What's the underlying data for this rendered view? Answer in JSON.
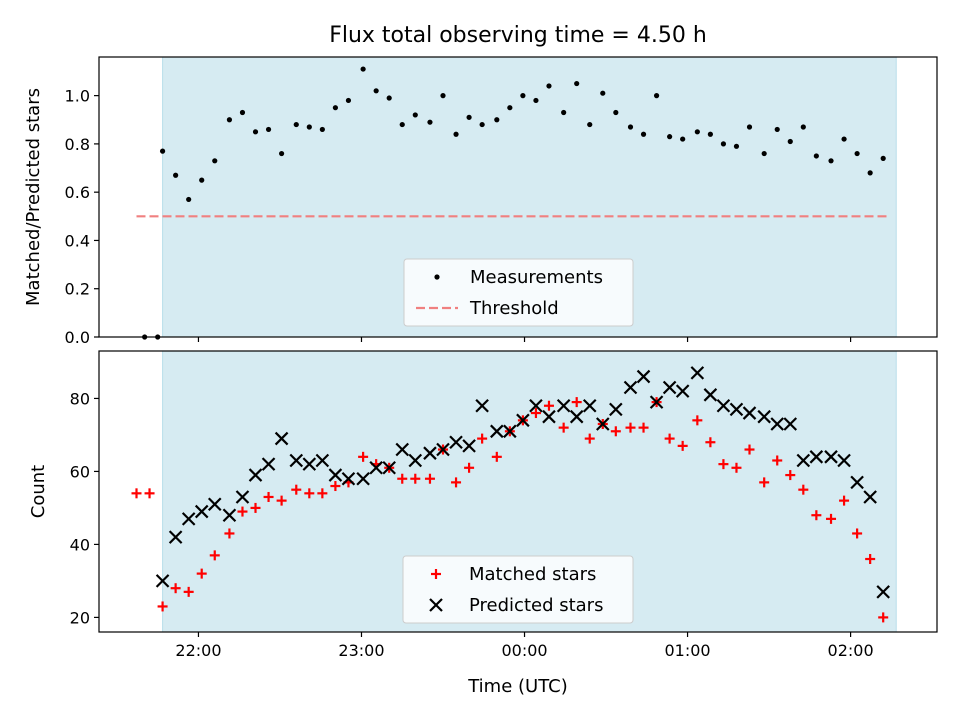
{
  "chart_data": {
    "title": "Flux total observing time = 4.50 h",
    "xlabel": "Time (UTC)",
    "x_unit": "hours (UTC, after 24 -> next day)",
    "xlim": [
      21.39,
      26.53
    ],
    "x_ticks": [
      {
        "value": 22,
        "label": "22:00"
      },
      {
        "value": 23,
        "label": "23:00"
      },
      {
        "value": 24,
        "label": "00:00"
      },
      {
        "value": 25,
        "label": "01:00"
      },
      {
        "value": 26,
        "label": "02:00"
      }
    ],
    "observing_window": {
      "start": 21.78,
      "end": 26.28,
      "color": "#add8e6"
    },
    "top": {
      "type": "scatter",
      "ylabel": "Matched/Predicted stars",
      "ylim": [
        0.0,
        1.16
      ],
      "yticks": [
        0.0,
        0.2,
        0.4,
        0.6,
        0.8,
        1.0
      ],
      "ytick_labels": [
        "0.0",
        "0.2",
        "0.4",
        "0.6",
        "0.8",
        "1.0"
      ],
      "threshold": {
        "value": 0.5,
        "x": [
          21.62,
          26.23
        ],
        "color": "#f08080",
        "name": "Threshold"
      },
      "legend": {
        "placement": "lower-center",
        "entries": [
          "Measurements",
          "Threshold"
        ]
      },
      "series": [
        {
          "name": "Measurements",
          "color": "#000000",
          "points": [
            [
              21.67,
              0.0
            ],
            [
              21.75,
              0.0
            ],
            [
              21.78,
              0.77
            ],
            [
              21.86,
              0.67
            ],
            [
              21.94,
              0.57
            ],
            [
              22.02,
              0.65
            ],
            [
              22.1,
              0.73
            ],
            [
              22.19,
              0.9
            ],
            [
              22.27,
              0.93
            ],
            [
              22.35,
              0.85
            ],
            [
              22.43,
              0.86
            ],
            [
              22.51,
              0.76
            ],
            [
              22.6,
              0.88
            ],
            [
              22.68,
              0.87
            ],
            [
              22.76,
              0.86
            ],
            [
              22.84,
              0.95
            ],
            [
              22.92,
              0.98
            ],
            [
              23.01,
              1.11
            ],
            [
              23.09,
              1.02
            ],
            [
              23.17,
              0.99
            ],
            [
              23.25,
              0.88
            ],
            [
              23.33,
              0.92
            ],
            [
              23.42,
              0.89
            ],
            [
              23.5,
              1.0
            ],
            [
              23.58,
              0.84
            ],
            [
              23.66,
              0.91
            ],
            [
              23.74,
              0.88
            ],
            [
              23.83,
              0.9
            ],
            [
              23.91,
              0.95
            ],
            [
              23.99,
              1.0
            ],
            [
              24.07,
              0.98
            ],
            [
              24.15,
              1.04
            ],
            [
              24.24,
              0.93
            ],
            [
              24.32,
              1.05
            ],
            [
              24.4,
              0.88
            ],
            [
              24.48,
              1.01
            ],
            [
              24.56,
              0.93
            ],
            [
              24.65,
              0.87
            ],
            [
              24.73,
              0.84
            ],
            [
              24.81,
              1.0
            ],
            [
              24.89,
              0.83
            ],
            [
              24.97,
              0.82
            ],
            [
              25.06,
              0.85
            ],
            [
              25.14,
              0.84
            ],
            [
              25.22,
              0.8
            ],
            [
              25.3,
              0.79
            ],
            [
              25.38,
              0.87
            ],
            [
              25.47,
              0.76
            ],
            [
              25.55,
              0.86
            ],
            [
              25.63,
              0.81
            ],
            [
              25.71,
              0.87
            ],
            [
              25.79,
              0.75
            ],
            [
              25.88,
              0.73
            ],
            [
              25.96,
              0.82
            ],
            [
              26.04,
              0.76
            ],
            [
              26.12,
              0.68
            ],
            [
              26.2,
              0.74
            ]
          ]
        }
      ]
    },
    "bottom": {
      "type": "scatter",
      "ylabel": "Count",
      "ylim": [
        16,
        93
      ],
      "yticks": [
        20,
        40,
        60,
        80
      ],
      "ytick_labels": [
        "20",
        "40",
        "60",
        "80"
      ],
      "legend": {
        "placement": "lower-center",
        "entries": [
          "Matched stars",
          "Predicted stars"
        ]
      },
      "series": [
        {
          "name": "Matched stars",
          "marker": "plus",
          "color": "#ff0000",
          "points": [
            [
              21.62,
              54
            ],
            [
              21.7,
              54
            ],
            [
              21.78,
              23
            ],
            [
              21.86,
              28
            ],
            [
              21.94,
              27
            ],
            [
              22.02,
              32
            ],
            [
              22.1,
              37
            ],
            [
              22.19,
              43
            ],
            [
              22.27,
              49
            ],
            [
              22.35,
              50
            ],
            [
              22.43,
              53
            ],
            [
              22.51,
              52
            ],
            [
              22.6,
              55
            ],
            [
              22.68,
              54
            ],
            [
              22.76,
              54
            ],
            [
              22.84,
              56
            ],
            [
              22.92,
              57
            ],
            [
              23.01,
              64
            ],
            [
              23.09,
              62
            ],
            [
              23.17,
              61
            ],
            [
              23.25,
              58
            ],
            [
              23.33,
              58
            ],
            [
              23.42,
              58
            ],
            [
              23.5,
              66
            ],
            [
              23.58,
              57
            ],
            [
              23.66,
              61
            ],
            [
              23.74,
              69
            ],
            [
              23.83,
              64
            ],
            [
              23.91,
              71
            ],
            [
              23.99,
              74
            ],
            [
              24.07,
              76
            ],
            [
              24.15,
              78
            ],
            [
              24.24,
              72
            ],
            [
              24.32,
              79
            ],
            [
              24.4,
              69
            ],
            [
              24.48,
              73
            ],
            [
              24.56,
              71
            ],
            [
              24.65,
              72
            ],
            [
              24.73,
              72
            ],
            [
              24.81,
              79
            ],
            [
              24.89,
              69
            ],
            [
              24.97,
              67
            ],
            [
              25.06,
              74
            ],
            [
              25.14,
              68
            ],
            [
              25.22,
              62
            ],
            [
              25.3,
              61
            ],
            [
              25.38,
              66
            ],
            [
              25.47,
              57
            ],
            [
              25.55,
              63
            ],
            [
              25.63,
              59
            ],
            [
              25.71,
              55
            ],
            [
              25.79,
              48
            ],
            [
              25.88,
              47
            ],
            [
              25.96,
              52
            ],
            [
              26.04,
              43
            ],
            [
              26.12,
              36
            ],
            [
              26.2,
              20
            ]
          ]
        },
        {
          "name": "Predicted stars",
          "marker": "x",
          "color": "#000000",
          "points": [
            [
              21.78,
              30
            ],
            [
              21.86,
              42
            ],
            [
              21.94,
              47
            ],
            [
              22.02,
              49
            ],
            [
              22.1,
              51
            ],
            [
              22.19,
              48
            ],
            [
              22.27,
              53
            ],
            [
              22.35,
              59
            ],
            [
              22.43,
              62
            ],
            [
              22.51,
              69
            ],
            [
              22.6,
              63
            ],
            [
              22.68,
              62
            ],
            [
              22.76,
              63
            ],
            [
              22.84,
              59
            ],
            [
              22.92,
              58
            ],
            [
              23.01,
              58
            ],
            [
              23.09,
              61
            ],
            [
              23.17,
              61
            ],
            [
              23.25,
              66
            ],
            [
              23.33,
              63
            ],
            [
              23.42,
              65
            ],
            [
              23.5,
              66
            ],
            [
              23.58,
              68
            ],
            [
              23.66,
              67
            ],
            [
              23.74,
              78
            ],
            [
              23.83,
              71
            ],
            [
              23.91,
              71
            ],
            [
              23.99,
              74
            ],
            [
              24.07,
              78
            ],
            [
              24.15,
              75
            ],
            [
              24.24,
              78
            ],
            [
              24.32,
              75
            ],
            [
              24.4,
              78
            ],
            [
              24.48,
              73
            ],
            [
              24.56,
              77
            ],
            [
              24.65,
              83
            ],
            [
              24.73,
              86
            ],
            [
              24.81,
              79
            ],
            [
              24.89,
              83
            ],
            [
              24.97,
              82
            ],
            [
              25.06,
              87
            ],
            [
              25.14,
              81
            ],
            [
              25.22,
              78
            ],
            [
              25.3,
              77
            ],
            [
              25.38,
              76
            ],
            [
              25.47,
              75
            ],
            [
              25.55,
              73
            ],
            [
              25.63,
              73
            ],
            [
              25.71,
              63
            ],
            [
              25.79,
              64
            ],
            [
              25.88,
              64
            ],
            [
              25.96,
              63
            ],
            [
              26.04,
              57
            ],
            [
              26.12,
              53
            ],
            [
              26.2,
              27
            ]
          ]
        }
      ]
    }
  }
}
